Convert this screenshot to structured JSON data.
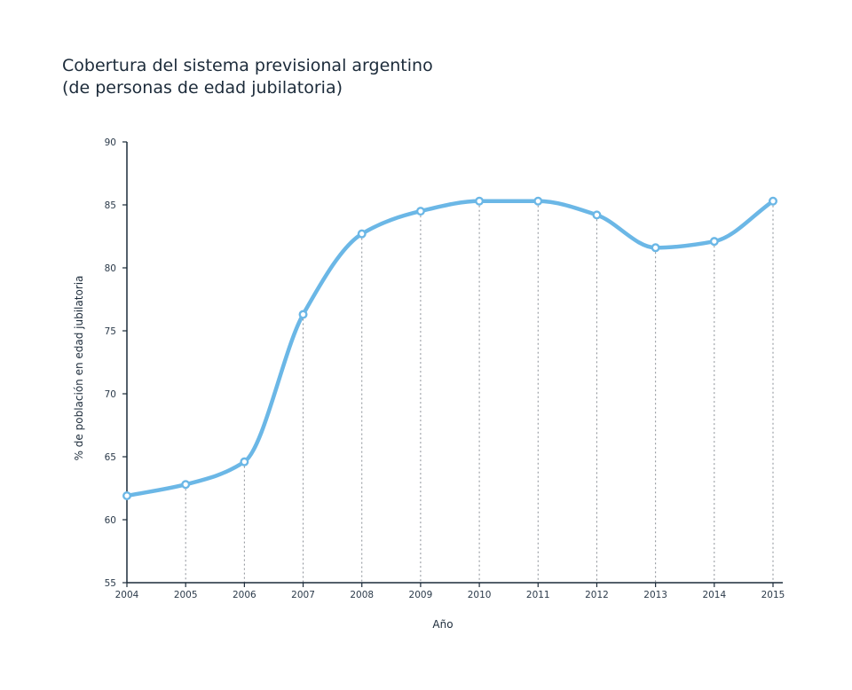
{
  "title_line1": "Cobertura del sistema previsional argentino",
  "title_line2": "(de personas de edad jubilatoria)",
  "chart_data": {
    "type": "line",
    "x": [
      "2004",
      "2005",
      "2006",
      "2007",
      "2008",
      "2009",
      "2010",
      "2011",
      "2012",
      "2013",
      "2014",
      "2015"
    ],
    "series": [
      {
        "values": [
          61.9,
          62.8,
          64.6,
          76.3,
          82.7,
          84.5,
          85.3,
          85.3,
          84.2,
          81.6,
          82.1,
          85.3
        ]
      }
    ],
    "xlabel": "Año",
    "ylabel": "% de población en edad jubilatoria",
    "ylim": [
      55,
      90
    ],
    "yticks": [
      "55",
      "60",
      "65",
      "70",
      "75",
      "80",
      "85",
      "90"
    ],
    "line_color": "#6bb7e6",
    "axis_color": "#1c2b3a",
    "guide_color": "#8a8f96",
    "grid": false,
    "vertical_guides": "dotted"
  }
}
